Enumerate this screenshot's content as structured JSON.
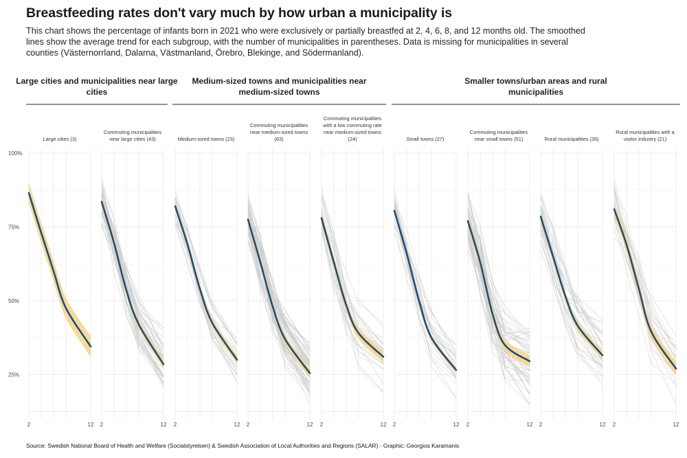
{
  "title": "Breastfeeding rates don't vary much by how urban a municipality is",
  "subtitle": "This chart shows the percentage of infants born in 2021 who were exclusively or partially breastfed at 2, 4, 6, 8, and 12 months old. The smoothed lines show the average trend for each subgroup, with the number of municipalities in parentheses. Data is missing for municipalities in several counties (Västernorrland, Dalarna, Västmanland, Örebro, Blekinge, and Södermanland).",
  "source": "Source: Swedish National Board of Health and Welfare (Socialstyrelsen) & Swedish Association of Local Authorities and Regions (SALAR) - Graphic: Georgios Karamanis",
  "colors": {
    "trend": "#1f4e79",
    "ribbon": "#f6d58e",
    "thin": "#c9c9c9",
    "grid": "#ececec",
    "divider": "#555555"
  },
  "chart_data": {
    "type": "line",
    "x": [
      2,
      4,
      6,
      8,
      12
    ],
    "x_tick_labels": [
      "2",
      "12"
    ],
    "ylim": [
      10,
      100
    ],
    "y_ticks": [
      {
        "value": 100,
        "label": "100%"
      },
      {
        "value": 75,
        "label": "75%"
      },
      {
        "value": 50,
        "label": "50%"
      },
      {
        "value": 25,
        "label": "25%"
      }
    ],
    "groups": [
      {
        "name": "Large cities and municipalities near large cities",
        "panels": [
          0,
          1
        ]
      },
      {
        "name": "Medium-sized towns and municipalities near medium-sized towns",
        "panels": [
          2,
          3,
          4
        ]
      },
      {
        "name": "Smaller towns/urban areas and rural municipalities",
        "panels": [
          5,
          6,
          7,
          8
        ]
      }
    ],
    "panels": [
      {
        "label": "Large cities (3)",
        "n": 3,
        "trend": [
          86.5,
          73,
          60,
          47.5,
          34.5
        ],
        "band": 3.5,
        "spread": 4
      },
      {
        "label": "Commuting municipalities near large cities (43)",
        "n": 43,
        "trend": [
          83.5,
          69.5,
          53.5,
          42,
          28.5
        ],
        "band": 1.5,
        "spread": 9
      },
      {
        "label": "Medium-sized towns (23)",
        "n": 23,
        "trend": [
          82,
          69,
          54,
          42.5,
          30
        ],
        "band": 1.5,
        "spread": 6
      },
      {
        "label": "Commuting municipalities near medium-sized towns (63)",
        "n": 63,
        "trend": [
          77.5,
          63,
          48,
          37,
          25.5
        ],
        "band": 1.5,
        "spread": 8
      },
      {
        "label": "Commuting municipalities with a low commuting rate near medium-sized towns (24)",
        "n": 24,
        "trend": [
          78,
          63,
          48.5,
          39,
          31
        ],
        "band": 2,
        "spread": 9
      },
      {
        "label": "Small towns (27)",
        "n": 27,
        "trend": [
          80.5,
          66,
          50,
          37.5,
          26.5
        ],
        "band": 1,
        "spread": 7
      },
      {
        "label": "Commuting municipalities near small towns (51)",
        "n": 51,
        "trend": [
          77,
          63,
          45.5,
          35,
          29.5
        ],
        "band": 2,
        "spread": 10
      },
      {
        "label": "Rural municipalities (35)",
        "n": 35,
        "trend": [
          78.5,
          65,
          51.5,
          41.5,
          31.5
        ],
        "band": 1.5,
        "spread": 9
      },
      {
        "label": "Rural municipalities with a visitor industry (21)",
        "n": 21,
        "trend": [
          81,
          69,
          54,
          39.5,
          27
        ],
        "band": 2.5,
        "spread": 9
      }
    ]
  }
}
